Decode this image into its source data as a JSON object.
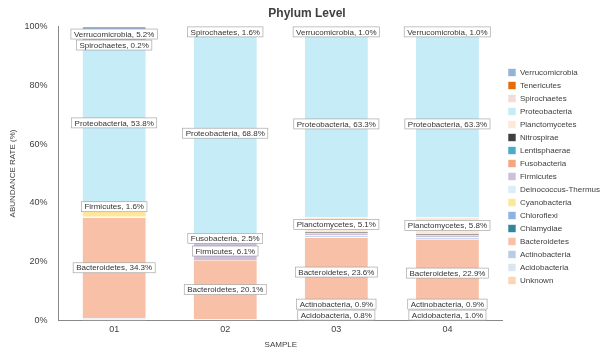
{
  "chart_data": {
    "type": "bar",
    "title": "Phylum Level",
    "x_label": "SAMPLE",
    "y_label": "ABUNDANCE RATE (%)",
    "categories": [
      "01",
      "02",
      "03",
      "04"
    ],
    "stacked": true,
    "grid": false,
    "legend": "right",
    "data_labels": true,
    "ylim": [
      0,
      100
    ],
    "yticks": [
      {
        "value": 0,
        "label": "0%"
      },
      {
        "value": 20,
        "label": "20%"
      },
      {
        "value": 40,
        "label": "40%"
      },
      {
        "value": 60,
        "label": "60%"
      },
      {
        "value": 80,
        "label": "80%"
      },
      {
        "value": 100,
        "label": "100%"
      }
    ],
    "series": [
      {
        "name": "Unknown",
        "color": "#fcd5b4",
        "values": [
          0.2,
          0.1,
          3.0,
          2.8
        ],
        "value_labels": [
          null,
          null,
          null,
          null
        ]
      },
      {
        "name": "Acidobacteria",
        "color": "#dce6f2",
        "values": [
          0.3,
          0.2,
          0.8,
          1.0
        ],
        "value_labels": [
          null,
          null,
          "Acidobacteria, 0.8%",
          "Acidobacteria, 1.0%"
        ]
      },
      {
        "name": "Actinobacteria",
        "color": "#b8cce4",
        "values": [
          0.3,
          0.2,
          0.9,
          0.9
        ],
        "value_labels": [
          null,
          null,
          "Actinobacteria, 0.9%",
          "Actinobacteria, 0.9%"
        ]
      },
      {
        "name": "Bacteroidetes",
        "color": "#f9c0a8",
        "values": [
          34.3,
          20.1,
          23.6,
          22.9
        ],
        "value_labels": [
          "Bacteroidetes, 34.3%",
          "Bacteroidetes, 20.1%",
          "Bacteroidetes, 23.6%",
          "Bacteroidetes, 22.9%"
        ]
      },
      {
        "name": "Chlamydiae",
        "color": "#31859c",
        "values": [
          0,
          0,
          0,
          0
        ],
        "value_labels": [
          null,
          null,
          null,
          null
        ]
      },
      {
        "name": "Chloroflexi",
        "color": "#8db3e2",
        "values": [
          0.2,
          0,
          0.5,
          0.5
        ],
        "value_labels": [
          null,
          null,
          null,
          null
        ]
      },
      {
        "name": "Cyanobacteria",
        "color": "#ffe699",
        "values": [
          2.5,
          0,
          0.2,
          0.2
        ],
        "value_labels": [
          null,
          null,
          null,
          null
        ]
      },
      {
        "name": "Deinococcus-Thermus",
        "color": "#daeef3",
        "values": [
          0.1,
          0,
          0,
          0
        ],
        "value_labels": [
          null,
          null,
          null,
          null
        ]
      },
      {
        "name": "Firmicutes",
        "color": "#ccc0da",
        "values": [
          1.6,
          6.1,
          0.8,
          0.8
        ],
        "value_labels": [
          "Firmicutes, 1.6%",
          "Firmicutes, 6.1%",
          null,
          null
        ]
      },
      {
        "name": "Fusobacteria",
        "color": "#f4a582",
        "values": [
          0.2,
          2.5,
          0,
          0
        ],
        "value_labels": [
          null,
          "Fusobacteria, 2.5%",
          null,
          null
        ]
      },
      {
        "name": "Lentisphaerae",
        "color": "#4bacc6",
        "values": [
          0,
          0,
          0,
          0
        ],
        "value_labels": [
          null,
          null,
          null,
          null
        ]
      },
      {
        "name": "Nitrospirae",
        "color": "#404040",
        "values": [
          0.1,
          0,
          0.3,
          0.3
        ],
        "value_labels": [
          null,
          null,
          null,
          null
        ]
      },
      {
        "name": "Planctomycetes",
        "color": "#fde9d9",
        "values": [
          0.5,
          0.1,
          5.1,
          5.8
        ],
        "value_labels": [
          null,
          null,
          "Planctomycetes, 5.1%",
          "Planctomycetes, 5.8%"
        ]
      },
      {
        "name": "Proteobacteria",
        "color": "#c5ecf7",
        "values": [
          53.8,
          68.8,
          63.3,
          63.3
        ],
        "value_labels": [
          "Proteobacteria, 53.8%",
          "Proteobacteria, 68.8%",
          "Proteobacteria, 63.3%",
          "Proteobacteria, 63.3%"
        ]
      },
      {
        "name": "Spirochaetes",
        "color": "#f2dcdb",
        "values": [
          0.2,
          1.6,
          0.2,
          0.2
        ],
        "value_labels": [
          "Spirochaetes, 0.2%",
          "Spirochaetes, 1.6%",
          null,
          null
        ]
      },
      {
        "name": "Tenericutes",
        "color": "#e46c0a",
        "values": [
          0.5,
          0.2,
          0.3,
          0.3
        ],
        "value_labels": [
          null,
          null,
          null,
          null
        ]
      },
      {
        "name": "Verrucomicrobia",
        "color": "#95b3d7",
        "values": [
          5.2,
          0.1,
          1.0,
          1.0
        ],
        "value_labels": [
          "Verrucomicrobia, 5.2%",
          null,
          "Verrucomicrobia, 1.0%",
          "Verrucomicrobia, 1.0%"
        ]
      }
    ]
  }
}
